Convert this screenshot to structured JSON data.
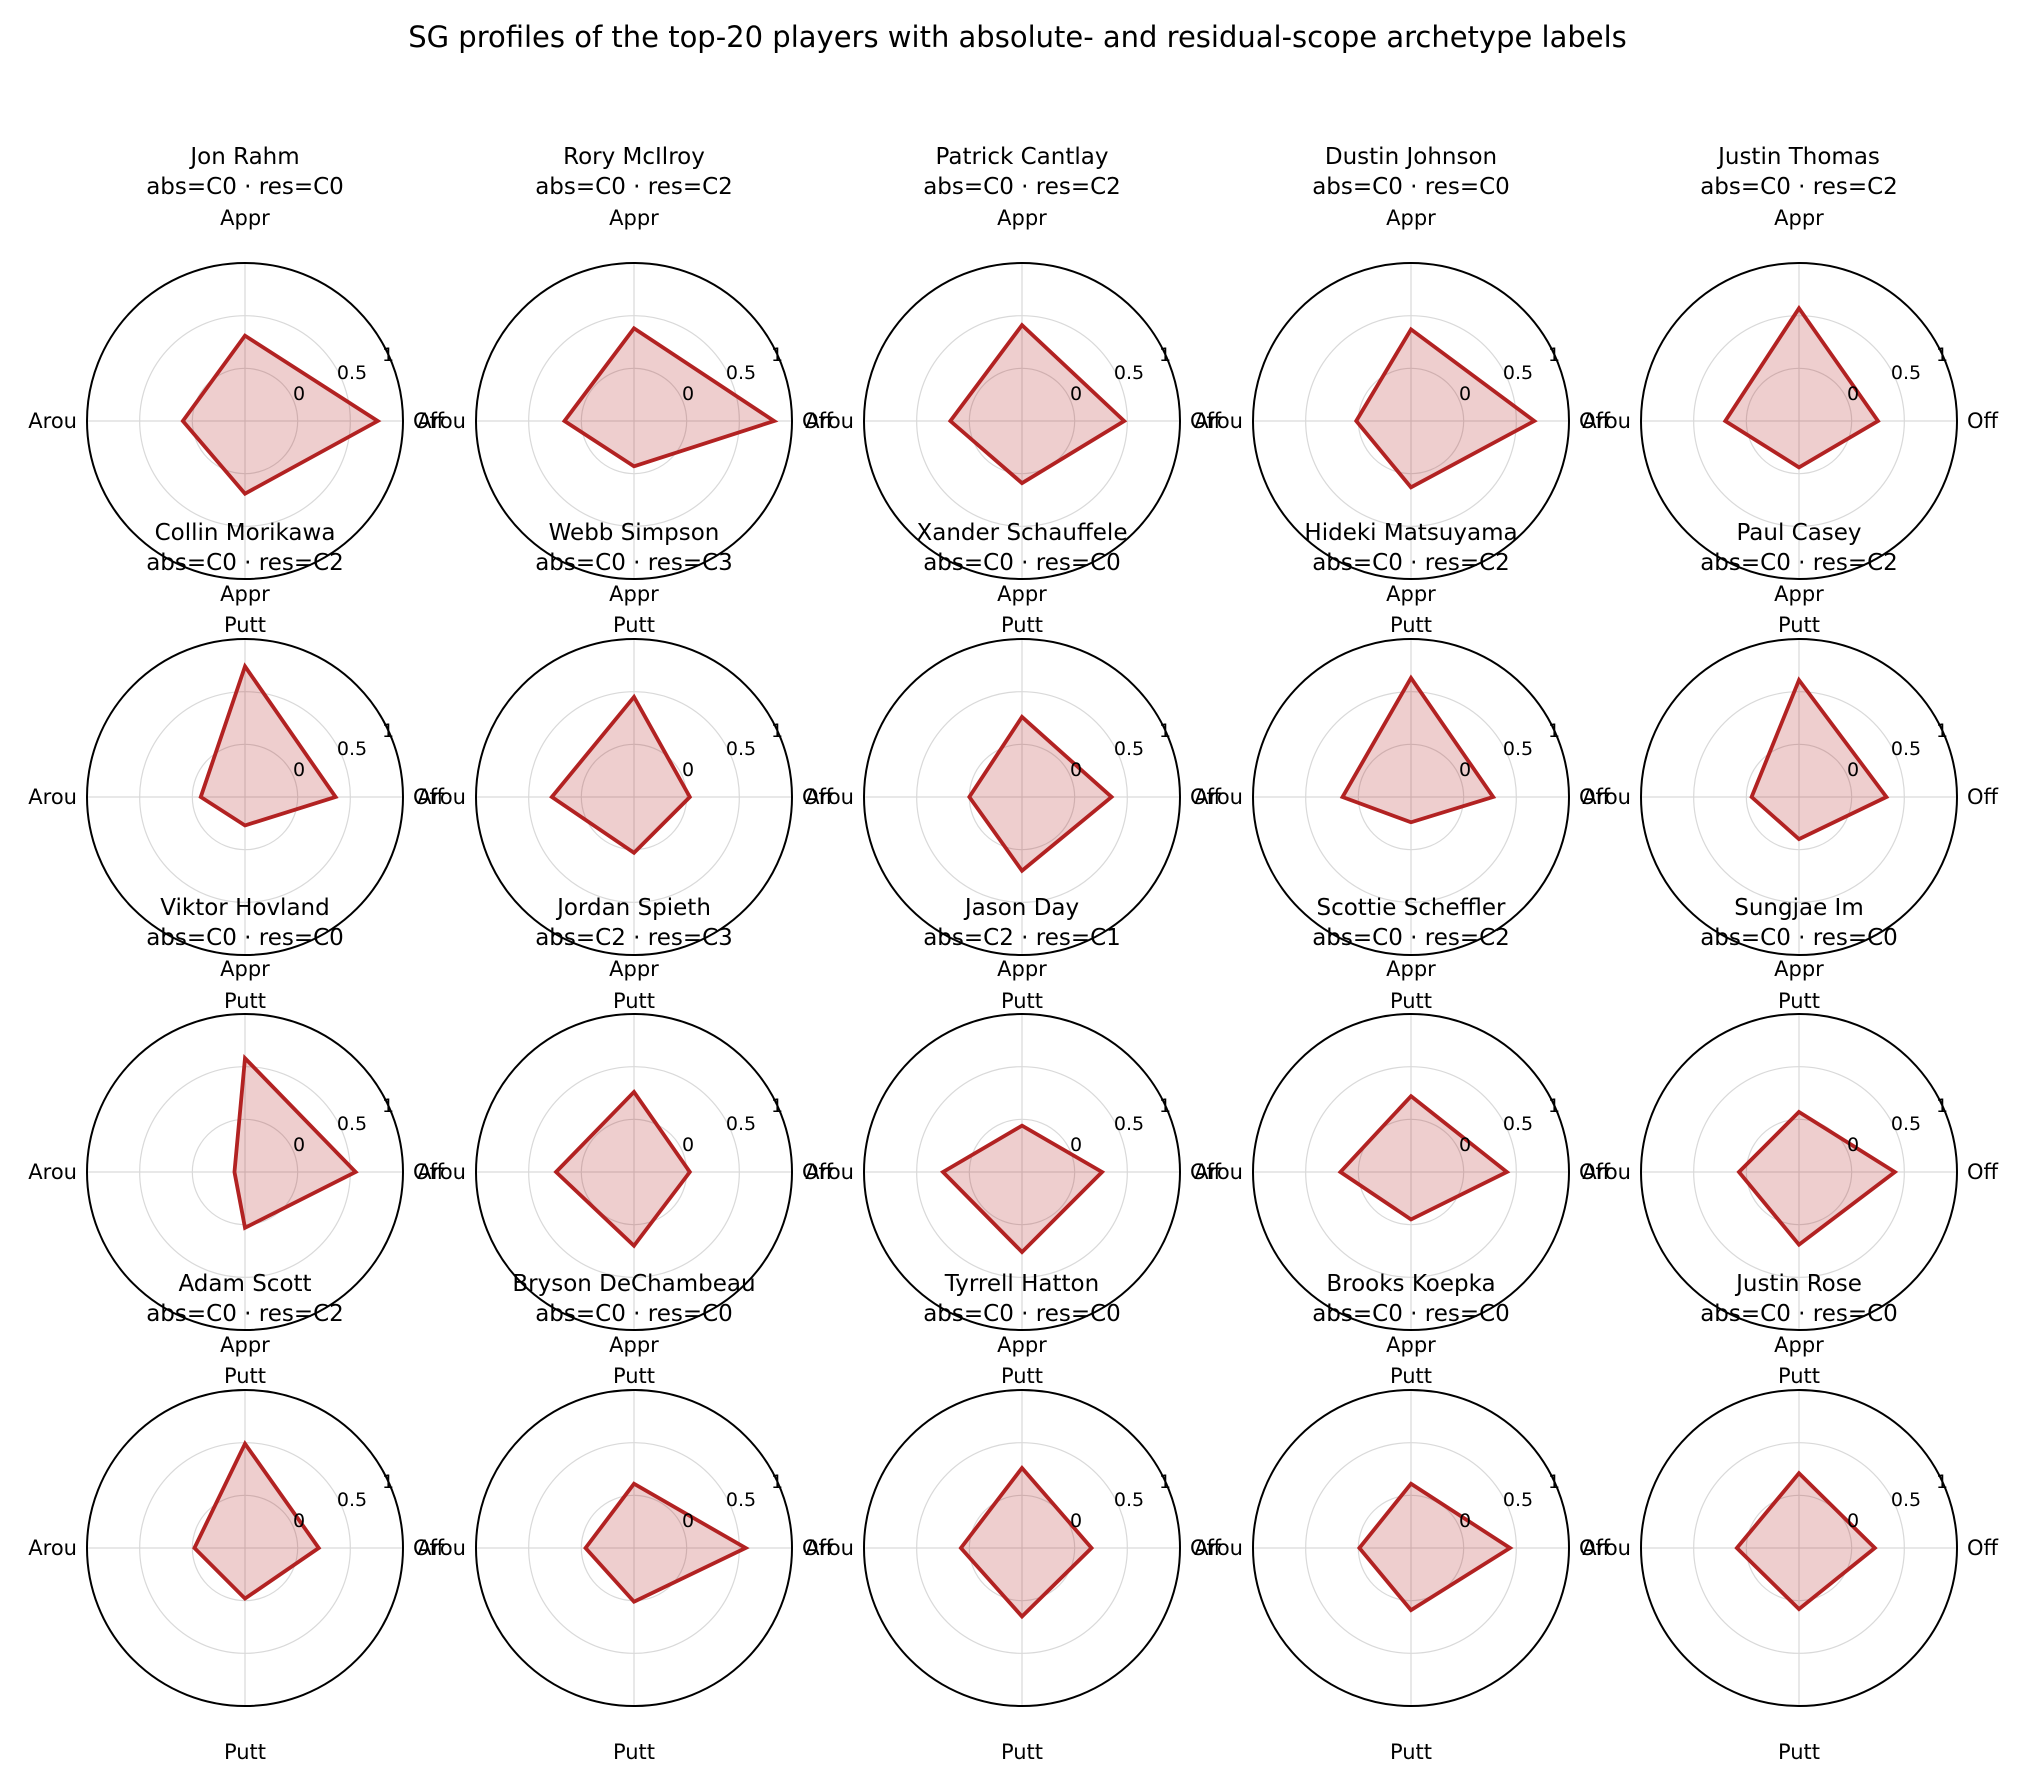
{
  "suptitle": "SG profiles of the top-20 players with absolute- and residual-scope archetype labels",
  "colors": {
    "polygon_stroke": "#b22222",
    "polygon_fill": "rgba(178,34,34,0.22)",
    "spine": "#000000",
    "grid": "#d9d9d9",
    "text": "#000000"
  },
  "chart_data": {
    "type": "radar",
    "layout": "4 rows x 5 columns of polar subplots",
    "axis_labels": {
      "top": "Appr",
      "right": "Off",
      "bottom": "Putt",
      "left": "Arou"
    },
    "axes_order": [
      "Appr",
      "Off",
      "Putt",
      "Arou"
    ],
    "r_range": [
      -0.5,
      1
    ],
    "r_ticks": [
      0,
      0.5,
      1
    ],
    "r_tick_labels": [
      "0",
      "0.5",
      "1"
    ],
    "grid": true,
    "players": [
      {
        "name": "Jon Rahm",
        "abs": "C0",
        "res": "C0",
        "archetype": "abs=C0 · res=C0",
        "values": {
          "appr": 0.31,
          "off": 0.76,
          "putt": 0.19,
          "arou": 0.09
        }
      },
      {
        "name": "Rory McIlroy",
        "abs": "C0",
        "res": "C2",
        "archetype": "abs=C0 · res=C2",
        "values": {
          "appr": 0.38,
          "off": 0.83,
          "putt": -0.07,
          "arou": 0.16
        }
      },
      {
        "name": "Patrick Cantlay",
        "abs": "C0",
        "res": "C2",
        "archetype": "abs=C0 · res=C2",
        "values": {
          "appr": 0.41,
          "off": 0.47,
          "putt": 0.09,
          "arou": 0.18
        }
      },
      {
        "name": "Dustin Johnson",
        "abs": "C0",
        "res": "C0",
        "archetype": "abs=C0 · res=C0",
        "values": {
          "appr": 0.37,
          "off": 0.67,
          "putt": 0.13,
          "arou": 0.02
        }
      },
      {
        "name": "Justin Thomas",
        "abs": "C0",
        "res": "C2",
        "archetype": "abs=C0 · res=C2",
        "values": {
          "appr": 0.57,
          "off": 0.25,
          "putt": -0.06,
          "arou": 0.2
        }
      },
      {
        "name": "Collin Morikawa",
        "abs": "C0",
        "res": "C2",
        "archetype": "abs=C0 · res=C2",
        "values": {
          "appr": 0.74,
          "off": 0.36,
          "putt": -0.23,
          "arou": -0.08
        }
      },
      {
        "name": "Webb Simpson",
        "abs": "C0",
        "res": "C3",
        "archetype": "abs=C0 · res=C3",
        "values": {
          "appr": 0.45,
          "off": 0.03,
          "putt": 0.03,
          "arou": 0.28
        }
      },
      {
        "name": "Xander Schauffele",
        "abs": "C0",
        "res": "C0",
        "archetype": "abs=C0 · res=C0",
        "values": {
          "appr": 0.26,
          "off": 0.35,
          "putt": 0.2,
          "arou": 0.0
        }
      },
      {
        "name": "Hideki Matsuyama",
        "abs": "C0",
        "res": "C2",
        "archetype": "abs=C0 · res=C2",
        "values": {
          "appr": 0.63,
          "off": 0.28,
          "putt": -0.26,
          "arou": 0.15
        }
      },
      {
        "name": "Paul Casey",
        "abs": "C0",
        "res": "C2",
        "archetype": "abs=C0 · res=C2",
        "values": {
          "appr": 0.61,
          "off": 0.33,
          "putt": -0.1,
          "arou": -0.05
        }
      },
      {
        "name": "Viktor Hovland",
        "abs": "C0",
        "res": "C0",
        "archetype": "abs=C0 · res=C0",
        "values": {
          "appr": 0.58,
          "off": 0.55,
          "putt": 0.03,
          "arou": -0.4
        }
      },
      {
        "name": "Jordan Spieth",
        "abs": "C2",
        "res": "C3",
        "archetype": "abs=C2 · res=C3",
        "values": {
          "appr": 0.26,
          "off": 0.03,
          "putt": 0.2,
          "arou": 0.24
        }
      },
      {
        "name": "Jason Day",
        "abs": "C2",
        "res": "C1",
        "archetype": "abs=C2 · res=C1",
        "values": {
          "appr": -0.06,
          "off": 0.26,
          "putt": 0.26,
          "arou": 0.25
        }
      },
      {
        "name": "Scottie Scheffler",
        "abs": "C0",
        "res": "C2",
        "archetype": "abs=C0 · res=C2",
        "values": {
          "appr": 0.22,
          "off": 0.41,
          "putt": -0.05,
          "arou": 0.17
        }
      },
      {
        "name": "Sungjae Im",
        "abs": "C0",
        "res": "C0",
        "archetype": "abs=C0 · res=C0",
        "values": {
          "appr": 0.07,
          "off": 0.41,
          "putt": 0.19,
          "arou": 0.07
        }
      },
      {
        "name": "Adam Scott",
        "abs": "C0",
        "res": "C2",
        "archetype": "abs=C0 · res=C2",
        "values": {
          "appr": 0.49,
          "off": 0.2,
          "putt": -0.02,
          "arou": -0.02
        }
      },
      {
        "name": "Bryson DeChambeau",
        "abs": "C0",
        "res": "C0",
        "archetype": "abs=C0 · res=C0",
        "values": {
          "appr": 0.11,
          "off": 0.56,
          "putt": 0.01,
          "arou": -0.04
        }
      },
      {
        "name": "Tyrrell Hatton",
        "abs": "C0",
        "res": "C0",
        "archetype": "abs=C0 · res=C0",
        "values": {
          "appr": 0.26,
          "off": 0.16,
          "putt": 0.15,
          "arou": 0.08
        }
      },
      {
        "name": "Brooks Koepka",
        "abs": "C0",
        "res": "C0",
        "archetype": "abs=C0 · res=C0",
        "values": {
          "appr": 0.11,
          "off": 0.44,
          "putt": 0.09,
          "arou": -0.01
        }
      },
      {
        "name": "Justin Rose",
        "abs": "C0",
        "res": "C0",
        "archetype": "abs=C0 · res=C0",
        "values": {
          "appr": 0.21,
          "off": 0.22,
          "putt": 0.08,
          "arou": 0.09
        }
      }
    ]
  }
}
